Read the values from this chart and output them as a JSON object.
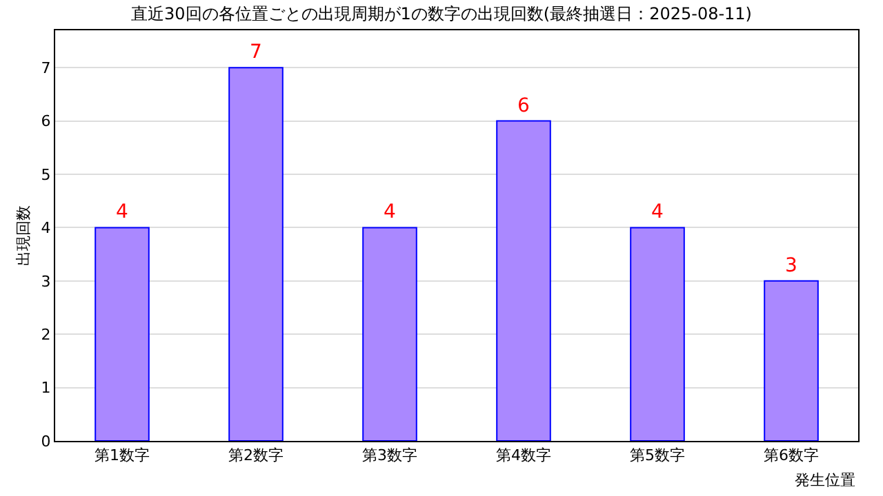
{
  "chart_data": {
    "type": "bar",
    "title": "直近30回の各位置ごとの出現周期が1の数字の出現回数(最終抽選日：2025-08-11)",
    "categories": [
      "第1数字",
      "第2数字",
      "第3数字",
      "第4数字",
      "第5数字",
      "第6数字"
    ],
    "values": [
      4,
      7,
      4,
      6,
      4,
      3
    ],
    "color": "#aa88ff",
    "xlabel": "発生位置",
    "ylabel": "出現回数",
    "ylim": [
      0,
      7.7
    ],
    "yticks": [
      0,
      1,
      2,
      3,
      4,
      5,
      6,
      7
    ],
    "grid": "y",
    "data_labels": true,
    "legend": false
  }
}
